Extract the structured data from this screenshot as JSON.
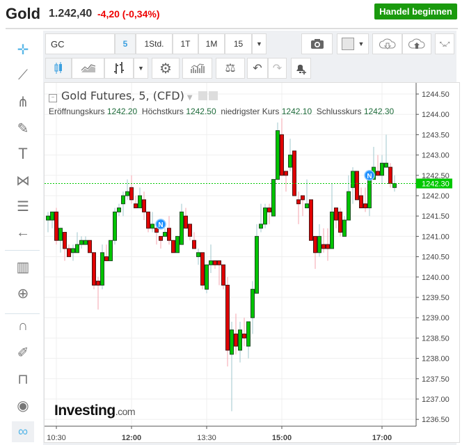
{
  "header": {
    "title": "Gold",
    "price": "1.242,40",
    "change": "-4,20 (-0,34%)",
    "trade_button": "Handel beginnen"
  },
  "toolbar": {
    "symbol": "GC",
    "intervals": [
      "5",
      "1Std.",
      "1T",
      "1M",
      "15"
    ],
    "active_interval": "5"
  },
  "left_tools": [
    "crosshair-icon",
    "trend-line-icon",
    "pitchfork-icon",
    "brush-icon",
    "text-icon",
    "pattern-icon",
    "fib-levels-icon",
    "back-arrow-icon",
    "measure-icon",
    "zoom-in-icon",
    "magnet-icon",
    "lock-drawing-icon",
    "unlock-icon",
    "eye-icon",
    "link-icon"
  ],
  "legend": {
    "title": "Gold Futures, 5, (CFD)",
    "open_label": "Eröffnungskurs",
    "open": "1242.20",
    "high_label": "Höchstkurs",
    "high": "1242.50",
    "low_label": "niedrigster Kurs",
    "low": "1242.10",
    "close_label": "Schlusskurs",
    "close": "1242.30"
  },
  "watermark": "Investing.com",
  "colors": {
    "up": "#00c400",
    "down": "#e00000",
    "current_price": "#00c800"
  },
  "chart_data": {
    "type": "candlestick",
    "ylim": [
      1236.3,
      1244.7
    ],
    "yticks": [
      "1244.50",
      "1244.00",
      "1243.50",
      "1243.00",
      "1242.50",
      "1242.00",
      "1241.50",
      "1241.00",
      "1240.50",
      "1240.00",
      "1239.50",
      "1239.00",
      "1238.50",
      "1238.00",
      "1237.50",
      "1237.00",
      "1236.50"
    ],
    "xticks": [
      "10:30",
      "12:00",
      "13:30",
      "15:00",
      "17:00"
    ],
    "current_price": "1242.30",
    "news_markers": [
      {
        "time": "12:35",
        "label": "N",
        "price": 1241.3
      },
      {
        "time": "16:45",
        "label": "N",
        "price": 1242.5
      }
    ],
    "x": [
      "10:20",
      "10:25",
      "10:30",
      "10:35",
      "10:40",
      "10:45",
      "10:50",
      "10:55",
      "11:00",
      "11:05",
      "11:10",
      "11:15",
      "11:20",
      "11:25",
      "11:30",
      "11:35",
      "11:40",
      "11:45",
      "11:50",
      "11:55",
      "12:00",
      "12:05",
      "12:10",
      "12:15",
      "12:20",
      "12:25",
      "12:30",
      "12:35",
      "12:40",
      "12:45",
      "12:50",
      "12:55",
      "13:00",
      "13:05",
      "13:10",
      "13:15",
      "13:20",
      "13:25",
      "13:30",
      "13:35",
      "13:40",
      "13:45",
      "13:50",
      "13:55",
      "14:00",
      "14:05",
      "14:10",
      "14:15",
      "14:20",
      "14:25",
      "14:30",
      "14:35",
      "14:40",
      "14:45",
      "14:50",
      "14:55",
      "15:00",
      "15:05",
      "15:10",
      "15:15",
      "15:20",
      "15:25",
      "15:30",
      "15:35",
      "15:40",
      "15:45",
      "15:50",
      "15:55",
      "16:00",
      "16:05",
      "16:10",
      "16:15",
      "16:20",
      "16:25",
      "16:30",
      "16:35",
      "16:40",
      "16:45",
      "16:50",
      "16:55",
      "17:00",
      "17:05",
      "17:10",
      "17:15"
    ],
    "ohlc": [
      [
        1241.4,
        1241.6,
        1241.1,
        1241.5
      ],
      [
        1241.4,
        1241.6,
        1241.2,
        1241.6
      ],
      [
        1241.6,
        1241.7,
        1240.8,
        1240.9
      ],
      [
        1240.9,
        1241.2,
        1240.6,
        1241.2
      ],
      [
        1241.1,
        1241.1,
        1240.4,
        1240.7
      ],
      [
        1240.7,
        1240.8,
        1240.5,
        1240.5
      ],
      [
        1240.6,
        1240.8,
        1240.4,
        1240.7
      ],
      [
        1240.6,
        1241.1,
        1240.6,
        1240.8
      ],
      [
        1240.8,
        1241.0,
        1240.7,
        1240.9
      ],
      [
        1240.8,
        1241.0,
        1240.8,
        1240.9
      ],
      [
        1240.9,
        1240.9,
        1240.6,
        1240.6
      ],
      [
        1240.6,
        1240.6,
        1239.7,
        1239.8
      ],
      [
        1239.9,
        1240.0,
        1239.2,
        1239.8
      ],
      [
        1239.8,
        1240.8,
        1239.7,
        1240.6
      ],
      [
        1240.5,
        1240.8,
        1240.4,
        1240.4
      ],
      [
        1240.4,
        1240.9,
        1240.4,
        1240.9
      ],
      [
        1240.9,
        1241.7,
        1240.8,
        1241.6
      ],
      [
        1241.6,
        1241.8,
        1241.5,
        1241.7
      ],
      [
        1241.8,
        1242.1,
        1241.5,
        1242.0
      ],
      [
        1242.0,
        1242.4,
        1241.9,
        1242.1
      ],
      [
        1242.2,
        1242.5,
        1241.8,
        1241.9
      ],
      [
        1241.8,
        1242.0,
        1241.7,
        1241.7
      ],
      [
        1241.7,
        1242.2,
        1241.7,
        1242.0
      ],
      [
        1241.9,
        1242.1,
        1241.4,
        1241.6
      ],
      [
        1241.6,
        1241.6,
        1241.1,
        1241.2
      ],
      [
        1241.2,
        1241.6,
        1241.1,
        1241.3
      ],
      [
        1241.2,
        1241.3,
        1240.8,
        1241.1
      ],
      [
        1241.0,
        1241.0,
        1240.7,
        1240.9
      ],
      [
        1241.0,
        1241.2,
        1241.0,
        1241.1
      ],
      [
        1241.2,
        1241.5,
        1240.8,
        1240.9
      ],
      [
        1240.9,
        1240.9,
        1240.6,
        1240.6
      ],
      [
        1240.6,
        1241.0,
        1240.6,
        1241.0
      ],
      [
        1240.8,
        1241.8,
        1240.8,
        1241.6
      ],
      [
        1241.5,
        1241.7,
        1241.2,
        1241.2
      ],
      [
        1241.3,
        1241.3,
        1240.9,
        1241.0
      ],
      [
        1240.9,
        1241.1,
        1240.7,
        1240.7
      ],
      [
        1240.5,
        1240.7,
        1240.3,
        1240.6
      ],
      [
        1240.6,
        1240.6,
        1239.7,
        1239.8
      ],
      [
        1239.7,
        1240.3,
        1239.6,
        1240.3
      ],
      [
        1240.3,
        1240.8,
        1240.1,
        1240.4
      ],
      [
        1240.4,
        1240.4,
        1240.2,
        1240.3
      ],
      [
        1240.4,
        1240.4,
        1239.8,
        1240.3
      ],
      [
        1240.3,
        1240.3,
        1239.7,
        1239.8
      ],
      [
        1239.8,
        1240.0,
        1237.8,
        1238.2
      ],
      [
        1238.1,
        1238.9,
        1236.7,
        1238.7
      ],
      [
        1238.6,
        1239.1,
        1238.1,
        1238.3
      ],
      [
        1238.2,
        1238.9,
        1237.9,
        1238.7
      ],
      [
        1238.6,
        1239.0,
        1238.3,
        1238.5
      ],
      [
        1238.3,
        1238.9,
        1238.0,
        1238.9
      ],
      [
        1239.0,
        1239.9,
        1238.6,
        1239.7
      ],
      [
        1239.6,
        1241.3,
        1239.6,
        1241.0
      ],
      [
        1241.2,
        1241.8,
        1241.1,
        1241.3
      ],
      [
        1241.3,
        1241.8,
        1241.2,
        1241.7
      ],
      [
        1241.7,
        1241.8,
        1241.3,
        1241.6
      ],
      [
        1241.5,
        1242.4,
        1241.5,
        1242.4
      ],
      [
        1242.4,
        1243.8,
        1242.4,
        1243.6
      ],
      [
        1243.5,
        1243.9,
        1242.5,
        1242.5
      ],
      [
        1242.6,
        1242.6,
        1242.1,
        1242.5
      ],
      [
        1242.7,
        1243.4,
        1242.6,
        1243.0
      ],
      [
        1243.1,
        1243.1,
        1242.0,
        1242.0
      ],
      [
        1241.9,
        1242.1,
        1241.3,
        1241.8
      ],
      [
        1242.0,
        1242.0,
        1241.5,
        1241.9
      ],
      [
        1241.7,
        1242.4,
        1241.7,
        1241.8
      ],
      [
        1241.9,
        1241.9,
        1240.9,
        1240.9
      ],
      [
        1241.0,
        1241.0,
        1240.2,
        1240.6
      ],
      [
        1240.6,
        1241.3,
        1240.5,
        1241.0
      ],
      [
        1240.8,
        1241.2,
        1240.6,
        1240.7
      ],
      [
        1240.8,
        1241.2,
        1240.4,
        1240.7
      ],
      [
        1240.7,
        1242.3,
        1240.7,
        1241.6
      ],
      [
        1241.7,
        1241.7,
        1241.2,
        1241.4
      ],
      [
        1241.6,
        1241.7,
        1241.0,
        1241.1
      ],
      [
        1241.0,
        1241.5,
        1241.0,
        1241.4
      ],
      [
        1241.4,
        1242.5,
        1241.4,
        1242.1
      ],
      [
        1242.2,
        1242.7,
        1241.8,
        1242.6
      ],
      [
        1242.6,
        1242.6,
        1241.9,
        1241.9
      ],
      [
        1242.0,
        1242.2,
        1241.7,
        1241.7
      ],
      [
        1241.8,
        1242.2,
        1241.6,
        1241.7
      ],
      [
        1241.7,
        1242.5,
        1241.5,
        1242.4
      ],
      [
        1242.4,
        1243.2,
        1242.4,
        1242.7
      ],
      [
        1242.6,
        1243.0,
        1242.5,
        1242.5
      ],
      [
        1242.5,
        1243.0,
        1242.3,
        1242.8
      ],
      [
        1242.7,
        1243.5,
        1242.7,
        1242.8
      ],
      [
        1242.7,
        1242.8,
        1242.2,
        1242.3
      ],
      [
        1242.2,
        1242.5,
        1242.1,
        1242.3
      ]
    ]
  }
}
